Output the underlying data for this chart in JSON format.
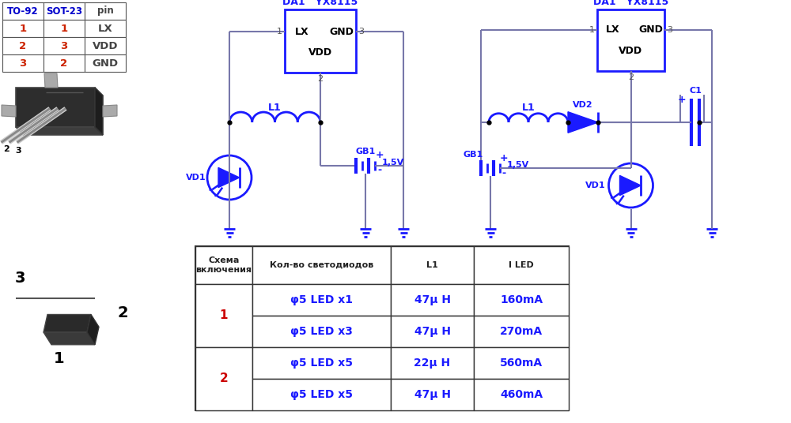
{
  "bg_color": "#ffffff",
  "blue": "#1a1aff",
  "wire_color": "#7777aa",
  "table1": {
    "headers": [
      "TO-92",
      "SOT-23",
      "pin"
    ],
    "rows": [
      [
        "1",
        "1",
        "LX"
      ],
      [
        "2",
        "3",
        "VDD"
      ],
      [
        "3",
        "2",
        "GND"
      ]
    ]
  },
  "table2": {
    "headers": [
      "Схема\nвключения",
      "Кол-во светодиодов",
      "L1",
      "I LED"
    ],
    "rows": [
      [
        "1",
        "φ5 LED x1",
        "47μ H",
        "160mA"
      ],
      [
        "",
        "φ5 LED x3",
        "47μ H",
        "270mA"
      ],
      [
        "2",
        "φ5 LED x5",
        "22μ H",
        "560mA"
      ],
      [
        "",
        "φ5 LED x5",
        "47μ H",
        "460mA"
      ]
    ]
  }
}
